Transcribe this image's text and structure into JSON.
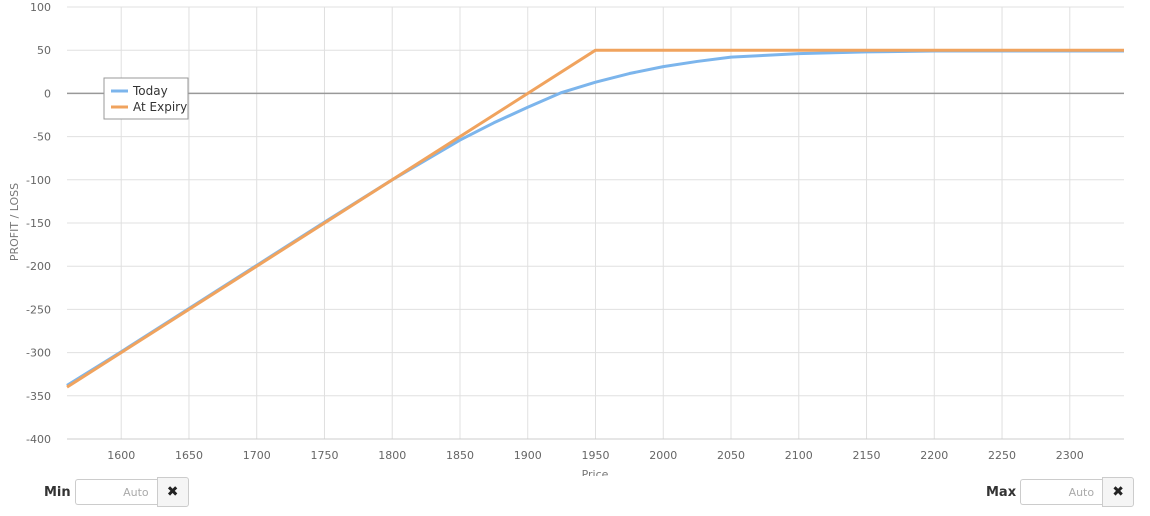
{
  "chart_data": {
    "type": "line",
    "xlabel": "Price",
    "ylabel": "PROFIT / LOSS",
    "xlim": [
      1560,
      2340
    ],
    "ylim": [
      -400,
      100
    ],
    "x_ticks": [
      1600,
      1650,
      1700,
      1750,
      1800,
      1850,
      1900,
      1950,
      2000,
      2050,
      2100,
      2150,
      2200,
      2250,
      2300
    ],
    "y_ticks": [
      100,
      50,
      0,
      -50,
      -100,
      -150,
      -200,
      -250,
      -300,
      -350,
      -400
    ],
    "grid": true,
    "legend_position": "top-left",
    "series": [
      {
        "name": "Today",
        "color": "#7cb5ec",
        "points": [
          [
            1560,
            -338
          ],
          [
            1600,
            -299
          ],
          [
            1650,
            -249
          ],
          [
            1700,
            -199
          ],
          [
            1750,
            -149
          ],
          [
            1800,
            -100
          ],
          [
            1850,
            -54
          ],
          [
            1875,
            -34
          ],
          [
            1900,
            -16
          ],
          [
            1925,
            1
          ],
          [
            1950,
            13
          ],
          [
            1975,
            23
          ],
          [
            2000,
            31
          ],
          [
            2025,
            37
          ],
          [
            2050,
            42
          ],
          [
            2075,
            44
          ],
          [
            2100,
            46
          ],
          [
            2150,
            48
          ],
          [
            2200,
            49
          ],
          [
            2340,
            49
          ]
        ]
      },
      {
        "name": "At Expiry",
        "color": "#f0a35e",
        "points": [
          [
            1560,
            -340
          ],
          [
            1950,
            50
          ],
          [
            2340,
            50
          ]
        ]
      }
    ]
  },
  "controls": {
    "min": {
      "label": "Min",
      "placeholder": "Auto",
      "clear_icon": "✖"
    },
    "max": {
      "label": "Max",
      "placeholder": "Auto",
      "clear_icon": "✖"
    }
  }
}
